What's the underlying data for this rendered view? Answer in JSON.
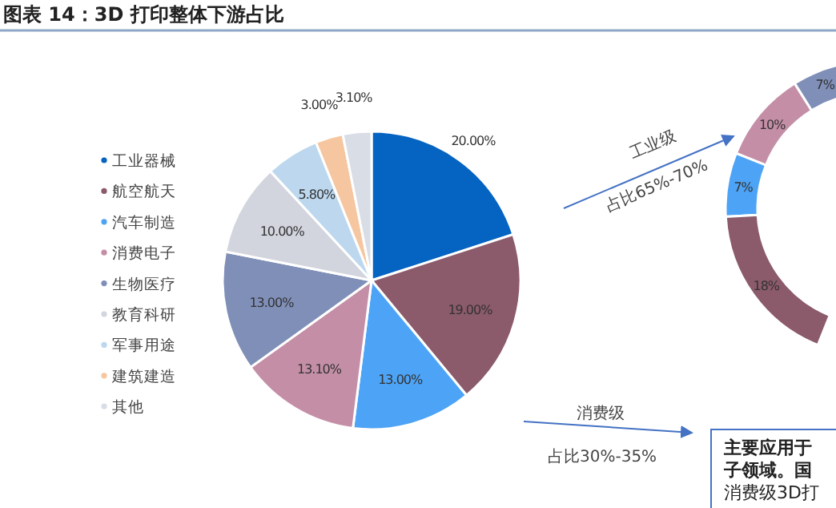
{
  "chart_data": [
    {
      "type": "pie",
      "title": "图表 14：3D 打印整体下游占比",
      "legend": "left",
      "categories": [
        "工业器械",
        "航空航天",
        "汽车制造",
        "消费电子",
        "生物医疗",
        "教育科研",
        "军事用途",
        "建筑建造",
        "其他"
      ],
      "values": [
        20,
        19,
        13,
        13.1,
        13,
        10,
        5.8,
        3,
        3.1
      ],
      "value_labels": [
        "20.00%",
        "19.00%",
        "13.00%",
        "13.10%",
        "13.00%",
        "10.00%",
        "5.80%",
        "3.00%",
        "3.10%"
      ],
      "colors": [
        "#0563c1",
        "#8b5a6b",
        "#4da3f5",
        "#c48fa6",
        "#7f8fb8",
        "#d2d5de",
        "#bcd7ee",
        "#f5c6a0",
        "#d8dde6"
      ]
    },
    {
      "type": "donut",
      "categories": [
        null,
        null,
        null,
        null
      ],
      "values": [
        7,
        10,
        7,
        18
      ],
      "value_labels": [
        "7%",
        "10%",
        "7%",
        "18%"
      ],
      "colors": [
        "#7f8fb8",
        "#c48fa6",
        "#4da3f5",
        "#8b5a6b"
      ],
      "annotations": [
        "工业级",
        "占比65%-70%",
        "消费级",
        "占比30%-35%",
        "主要应用于",
        "子领域。国",
        "消费级3D打"
      ]
    }
  ]
}
